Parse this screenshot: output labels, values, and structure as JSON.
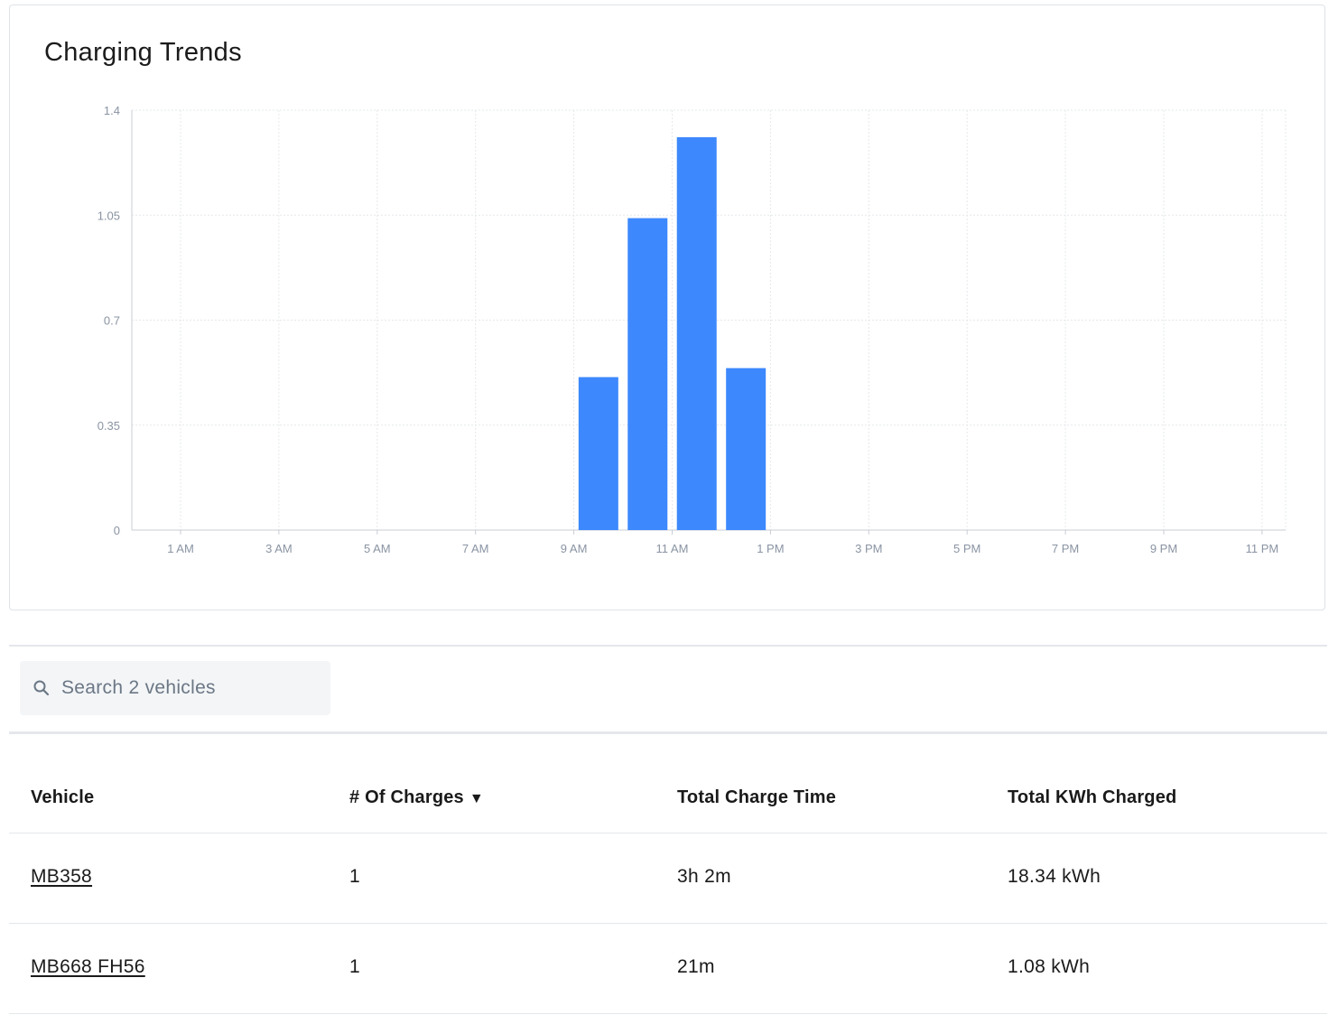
{
  "card": {
    "title": "Charging Trends"
  },
  "chart_data": {
    "type": "bar",
    "title": "Charging Trends",
    "xlabel": "",
    "ylabel": "",
    "ylim": [
      0,
      1.4
    ],
    "y_ticks": [
      "0",
      "0.35",
      "0.7",
      "1.05",
      "1.4"
    ],
    "x_ticks": [
      "1 AM",
      "3 AM",
      "5 AM",
      "7 AM",
      "9 AM",
      "11 AM",
      "1 PM",
      "3 PM",
      "5 PM",
      "7 PM",
      "9 PM",
      "11 PM"
    ],
    "hours": [
      9.5,
      10.5,
      11.5,
      12.5
    ],
    "values": [
      0.51,
      1.04,
      1.31,
      0.54
    ],
    "grid": true,
    "bar_color": "#3d88fd"
  },
  "search": {
    "placeholder": "Search 2 vehicles",
    "icon": "search-icon"
  },
  "table": {
    "headers": [
      "Vehicle",
      "# Of Charges",
      "Total Charge Time",
      "Total KWh Charged"
    ],
    "sort_indicator": "▼",
    "rows": [
      {
        "vehicle": "MB358",
        "charges": "1",
        "time": "3h 2m",
        "kwh": "18.34 kWh"
      },
      {
        "vehicle": "MB668 FH56",
        "charges": "1",
        "time": "21m",
        "kwh": "1.08 kWh"
      }
    ]
  }
}
